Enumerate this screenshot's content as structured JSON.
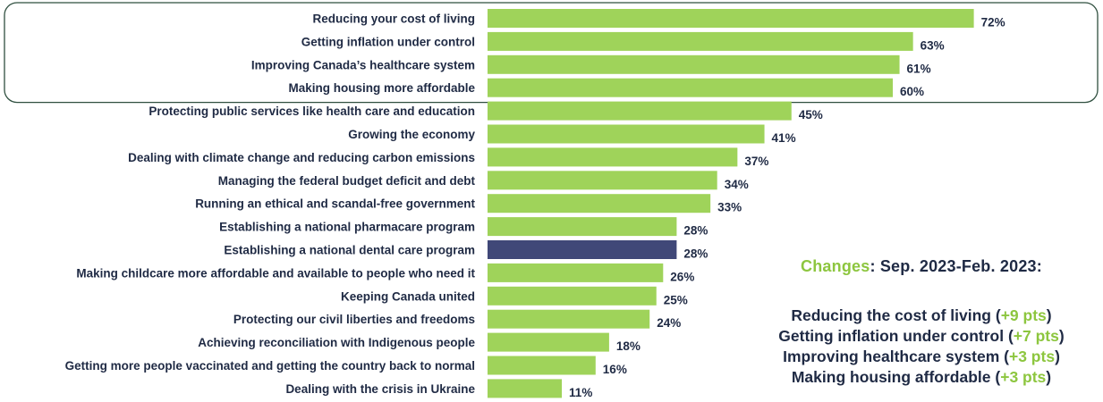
{
  "chart_data": {
    "type": "bar",
    "orientation": "horizontal",
    "categories": [
      "Reducing your cost of living",
      "Getting inflation under control",
      "Improving Canada’s healthcare system",
      "Making housing more affordable",
      "Protecting public services like health care and education",
      "Growing the economy",
      "Dealing with climate change and reducing carbon emissions",
      "Managing the federal budget deficit and debt",
      "Running an ethical and scandal-free government",
      "Establishing a national pharmacare program",
      "Establishing a national dental care program",
      "Making childcare more affordable and available to people who need it",
      "Keeping Canada united",
      "Protecting our civil liberties and freedoms",
      "Achieving reconciliation with Indigenous people",
      "Getting more people vaccinated and getting the country back to normal",
      "Dealing with the crisis in Ukraine"
    ],
    "values": [
      72,
      63,
      61,
      60,
      45,
      41,
      37,
      34,
      33,
      28,
      28,
      26,
      25,
      24,
      18,
      16,
      11
    ],
    "value_labels": [
      "72%",
      "63%",
      "61%",
      "60%",
      "45%",
      "41%",
      "37%",
      "34%",
      "33%",
      "28%",
      "28%",
      "26%",
      "25%",
      "24%",
      "18%",
      "16%",
      "11%"
    ],
    "highlighted_index": 10,
    "highlighted_top_n": 4,
    "colors": {
      "bar": "#9fd35a",
      "highlight": "#404878",
      "text": "#1f2a44",
      "box": "#2f4f3f"
    },
    "xlim": [
      0,
      100
    ],
    "grid": false,
    "legend": "none"
  },
  "changes": {
    "title_accent": "Changes",
    "title_rest": ": Sep. 2023-Feb. 2023:",
    "items": [
      {
        "text": "Reducing the cost of living",
        "pts": "+9 pts"
      },
      {
        "text": "Getting inflation under control",
        "pts": "+7 pts"
      },
      {
        "text": "Improving healthcare system",
        "pts": "+3 pts"
      },
      {
        "text": "Making housing affordable",
        "pts": "+3 pts"
      }
    ],
    "accent_color": "#8dc63f"
  }
}
